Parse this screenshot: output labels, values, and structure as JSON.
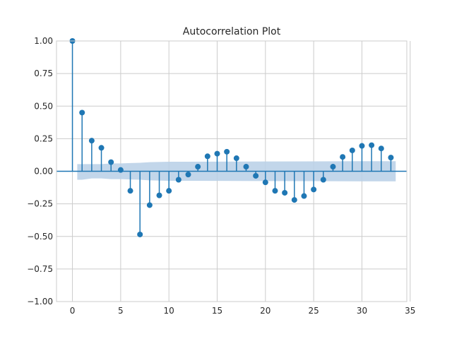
{
  "chart_data": {
    "type": "stem",
    "title": "Autocorrelation Plot",
    "xlabel": "",
    "ylabel": "",
    "xlim": [
      -1.65,
      34.65
    ],
    "ylim": [
      -1.0,
      1.0
    ],
    "x_ticks": [
      0,
      5,
      10,
      15,
      20,
      25,
      30,
      35
    ],
    "y_ticks": [
      -1.0,
      -0.75,
      -0.5,
      -0.25,
      0.0,
      0.25,
      0.5,
      0.75,
      1.0
    ],
    "x_tick_labels": [
      "0",
      "5",
      "10",
      "15",
      "20",
      "25",
      "30",
      "35"
    ],
    "y_tick_labels": [
      "−1.00",
      "−0.75",
      "−0.50",
      "−0.25",
      "0.00",
      "0.25",
      "0.50",
      "0.75",
      "1.00"
    ],
    "grid": true,
    "lags": [
      0,
      1,
      2,
      3,
      4,
      5,
      6,
      7,
      8,
      9,
      10,
      11,
      12,
      13,
      14,
      15,
      16,
      17,
      18,
      19,
      20,
      21,
      22,
      23,
      24,
      25,
      26,
      27,
      28,
      29,
      30,
      31,
      32,
      33
    ],
    "values": [
      1.0,
      0.45,
      0.235,
      0.18,
      0.07,
      0.01,
      -0.15,
      -0.485,
      -0.26,
      -0.185,
      -0.15,
      -0.065,
      -0.025,
      0.035,
      0.115,
      0.135,
      0.15,
      0.1,
      0.035,
      -0.035,
      -0.085,
      -0.15,
      -0.165,
      -0.22,
      -0.19,
      -0.14,
      -0.065,
      0.035,
      0.11,
      0.16,
      0.195,
      0.2,
      0.175,
      0.105
    ],
    "confidence_band": {
      "lags": [
        0.5,
        1,
        2,
        3,
        4,
        5,
        6,
        7,
        8,
        10,
        15,
        20,
        25,
        30,
        33.5
      ],
      "upper": [
        0.055,
        0.055,
        0.055,
        0.055,
        0.06,
        0.06,
        0.063,
        0.065,
        0.07,
        0.073,
        0.074,
        0.075,
        0.076,
        0.077,
        0.077
      ]
    },
    "colors": {
      "stem": "#1f77b4",
      "band": "#b7cfe6",
      "grid": "#cccccc",
      "axis": "#cccccc",
      "zero_line": "#1f77b4"
    }
  }
}
